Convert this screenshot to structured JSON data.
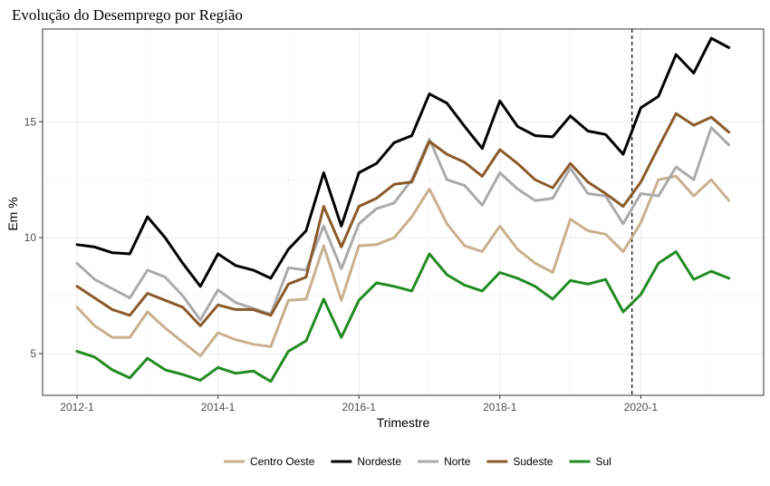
{
  "chart_data": {
    "type": "line",
    "title": "Evolução do Desemprego por Região",
    "xlabel": "Trimestre",
    "ylabel": "Em %",
    "x": [
      "2012-1",
      "2012-2",
      "2012-3",
      "2012-4",
      "2013-1",
      "2013-2",
      "2013-3",
      "2013-4",
      "2014-1",
      "2014-2",
      "2014-3",
      "2014-4",
      "2015-1",
      "2015-2",
      "2015-3",
      "2015-4",
      "2016-1",
      "2016-2",
      "2016-3",
      "2016-4",
      "2017-1",
      "2017-2",
      "2017-3",
      "2017-4",
      "2018-1",
      "2018-2",
      "2018-3",
      "2018-4",
      "2019-1",
      "2019-2",
      "2019-3",
      "2019-4",
      "2020-1",
      "2020-2",
      "2020-3",
      "2020-4",
      "2021-1",
      "2021-2"
    ],
    "x_ticks": [
      "2012-1",
      "2014-1",
      "2016-1",
      "2018-1",
      "2020-1"
    ],
    "y_ticks": [
      5,
      10,
      15
    ],
    "ylim": [
      3.2,
      19.0
    ],
    "vline_after": "2019-4",
    "grid": true,
    "legend_position": "bottom",
    "series": [
      {
        "name": "Centro Oeste",
        "color": "#c8b08f",
        "values": [
          7.0,
          6.2,
          5.7,
          5.7,
          6.8,
          6.1,
          5.5,
          4.9,
          5.9,
          5.6,
          5.4,
          5.3,
          7.3,
          7.35,
          9.65,
          7.3,
          9.65,
          9.7,
          10.0,
          10.9,
          12.1,
          10.6,
          9.65,
          9.4,
          10.5,
          9.5,
          8.9,
          8.5,
          10.8,
          10.3,
          10.15,
          9.4,
          10.65,
          12.5,
          12.65,
          11.8,
          12.5,
          11.6
        ]
      },
      {
        "name": "Nordeste",
        "color": "#000000",
        "values": [
          9.7,
          9.6,
          9.35,
          9.3,
          10.9,
          10.0,
          8.9,
          7.9,
          9.3,
          8.8,
          8.6,
          8.25,
          9.5,
          10.3,
          12.8,
          10.5,
          12.8,
          13.2,
          14.1,
          14.4,
          16.2,
          15.8,
          14.8,
          13.85,
          15.9,
          14.8,
          14.4,
          14.35,
          15.25,
          14.6,
          14.45,
          13.6,
          15.6,
          16.1,
          17.9,
          17.1,
          18.6,
          18.2
        ]
      },
      {
        "name": "Norte",
        "color": "#ababab",
        "values": [
          8.9,
          8.2,
          7.8,
          7.4,
          8.6,
          8.3,
          7.5,
          6.45,
          7.75,
          7.2,
          6.95,
          6.7,
          8.7,
          8.6,
          10.5,
          8.65,
          10.6,
          11.25,
          11.5,
          12.5,
          14.25,
          12.5,
          12.25,
          11.4,
          12.8,
          12.1,
          11.6,
          11.7,
          13.0,
          11.9,
          11.8,
          10.6,
          11.9,
          11.8,
          13.05,
          12.5,
          14.75,
          14.0
        ]
      },
      {
        "name": "Sudeste",
        "color": "#8b5a2b",
        "values": [
          7.9,
          7.4,
          6.9,
          6.65,
          7.6,
          7.3,
          7.0,
          6.2,
          7.1,
          6.9,
          6.9,
          6.65,
          8.0,
          8.3,
          11.35,
          9.6,
          11.35,
          11.7,
          12.3,
          12.4,
          14.15,
          13.6,
          13.25,
          12.65,
          13.8,
          13.2,
          12.5,
          12.15,
          13.2,
          12.4,
          11.9,
          11.35,
          12.4,
          13.9,
          15.35,
          14.85,
          15.2,
          14.55
        ]
      },
      {
        "name": "Sul",
        "color": "#228b22",
        "values": [
          5.1,
          4.85,
          4.3,
          3.95,
          4.8,
          4.3,
          4.1,
          3.85,
          4.4,
          4.15,
          4.25,
          3.8,
          5.1,
          5.55,
          7.35,
          5.7,
          7.3,
          8.05,
          7.9,
          7.7,
          9.3,
          8.4,
          7.95,
          7.7,
          8.5,
          8.25,
          7.9,
          7.35,
          8.15,
          8.0,
          8.2,
          6.8,
          7.55,
          8.9,
          9.4,
          8.2,
          8.55,
          8.25
        ]
      }
    ]
  }
}
